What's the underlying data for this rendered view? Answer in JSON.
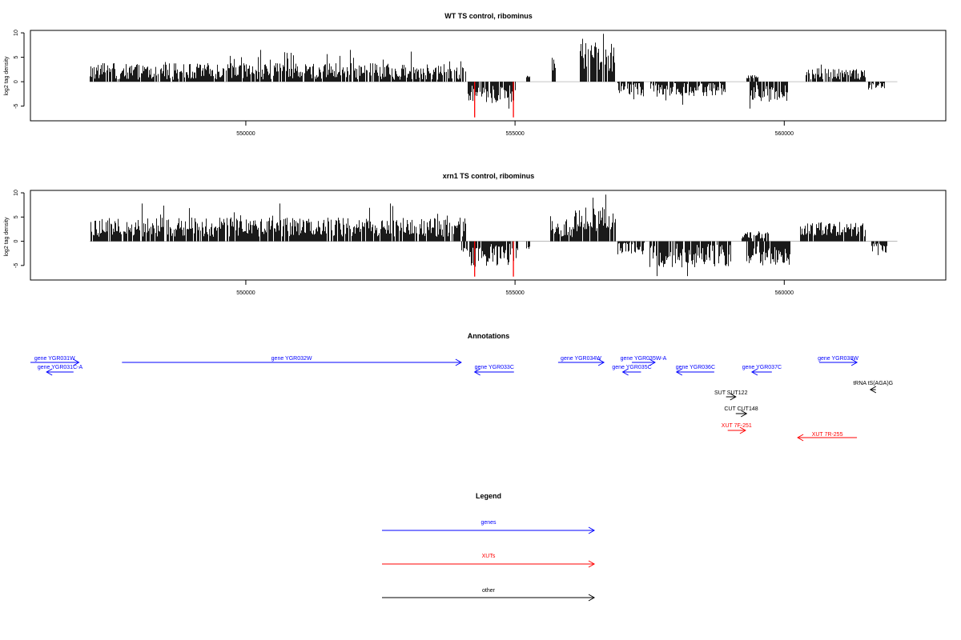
{
  "chart_data": [
    {
      "type": "bar",
      "title": "WT TS control, ribominus",
      "ylabel": "log2 tag density",
      "xlabel": "",
      "ylim": [
        -8,
        10.5
      ],
      "xlim": [
        546000,
        563000
      ],
      "yticks": [
        -5,
        0,
        5,
        10
      ],
      "xticks": [
        550000,
        555000,
        560000
      ],
      "xtick_labels": [
        "550000",
        "555000",
        "560000"
      ],
      "colors": {
        "bars": "#000000",
        "highlight": "#ff0000",
        "baseline": "#b0b0b0"
      },
      "segments": [
        {
          "start": 547100,
          "end": 554080,
          "sign": 1,
          "mean": 2.1,
          "amp": 1.7,
          "max": 6.5
        },
        {
          "start": 554120,
          "end": 555000,
          "sign": -1,
          "mean": 2.4,
          "amp": 1.8,
          "max": 5.5
        },
        {
          "start": 555200,
          "end": 555260,
          "sign": 1,
          "mean": 1.0,
          "amp": 0.2,
          "max": 1.2
        },
        {
          "start": 555680,
          "end": 555780,
          "sign": 1,
          "mean": 4.0,
          "amp": 2.0,
          "max": 6.2
        },
        {
          "start": 556200,
          "end": 556850,
          "sign": 1,
          "mean": 5.0,
          "amp": 3.0,
          "max": 9.8
        },
        {
          "start": 556900,
          "end": 557400,
          "sign": -1,
          "mean": 1.5,
          "amp": 1.6,
          "max": 3.6
        },
        {
          "start": 557500,
          "end": 558900,
          "sign": -1,
          "mean": 1.5,
          "amp": 1.5,
          "max": 4.7
        },
        {
          "start": 559300,
          "end": 559500,
          "sign": 1,
          "mean": 1.0,
          "amp": 0.4,
          "max": 1.4
        },
        {
          "start": 559350,
          "end": 560050,
          "sign": -1,
          "mean": 2.5,
          "amp": 2.0,
          "max": 5.5
        },
        {
          "start": 560400,
          "end": 561500,
          "sign": 1,
          "mean": 1.6,
          "amp": 1.2,
          "max": 3.5
        },
        {
          "start": 561550,
          "end": 561850,
          "sign": -1,
          "mean": 0.8,
          "amp": 0.8,
          "max": 2.0
        }
      ],
      "red_bars": [
        {
          "x": 554250,
          "y": -7.3
        },
        {
          "x": 554970,
          "y": -7.3
        }
      ]
    },
    {
      "type": "bar",
      "title": "xrn1 TS control, ribominus",
      "ylabel": "log2 tag density",
      "xlabel": "",
      "ylim": [
        -8,
        10.5
      ],
      "xlim": [
        546000,
        563000
      ],
      "yticks": [
        -5,
        0,
        5,
        10
      ],
      "xticks": [
        550000,
        555000,
        560000
      ],
      "xtick_labels": [
        "550000",
        "555000",
        "560000"
      ],
      "colors": {
        "bars": "#000000",
        "highlight": "#ff0000",
        "baseline": "#b0b0b0"
      },
      "segments": [
        {
          "start": 547100,
          "end": 554080,
          "sign": 1,
          "mean": 2.9,
          "amp": 2.0,
          "max": 7.8
        },
        {
          "start": 554000,
          "end": 555050,
          "sign": -1,
          "mean": 2.7,
          "amp": 2.3,
          "max": 6.5
        },
        {
          "start": 555200,
          "end": 555260,
          "sign": -1,
          "mean": 1.5,
          "amp": 0.6,
          "max": 2.5
        },
        {
          "start": 555650,
          "end": 555800,
          "sign": 1,
          "mean": 4.0,
          "amp": 2.5,
          "max": 6.8
        },
        {
          "start": 555800,
          "end": 556100,
          "sign": 1,
          "mean": 2.0,
          "amp": 1.5,
          "max": 4.5
        },
        {
          "start": 556100,
          "end": 556850,
          "sign": 1,
          "mean": 5.0,
          "amp": 3.0,
          "max": 9.8
        },
        {
          "start": 556900,
          "end": 557400,
          "sign": -1,
          "mean": 1.2,
          "amp": 1.5,
          "max": 3.0
        },
        {
          "start": 557500,
          "end": 559000,
          "sign": -1,
          "mean": 3.0,
          "amp": 2.5,
          "max": 7.2
        },
        {
          "start": 559200,
          "end": 559700,
          "sign": 1,
          "mean": 1.5,
          "amp": 1.0,
          "max": 3.2
        },
        {
          "start": 559300,
          "end": 560100,
          "sign": -1,
          "mean": 3.0,
          "amp": 2.0,
          "max": 5.5
        },
        {
          "start": 560300,
          "end": 561500,
          "sign": 1,
          "mean": 2.5,
          "amp": 1.5,
          "max": 4.5
        },
        {
          "start": 561600,
          "end": 561900,
          "sign": -1,
          "mean": 1.2,
          "amp": 1.2,
          "max": 3.0
        }
      ],
      "red_bars": [
        {
          "x": 554250,
          "y": -7.3
        },
        {
          "x": 554970,
          "y": -7.3
        }
      ]
    }
  ],
  "annotations": {
    "title": "Annotations",
    "items": [
      {
        "label": "gene YGR031W",
        "start": 546000,
        "end": 546900,
        "dir": "right",
        "color": "#0000ff",
        "row": 0
      },
      {
        "label": "gene YGR031C-A",
        "start": 546300,
        "end": 546800,
        "dir": "left",
        "color": "#0000ff",
        "row": 1
      },
      {
        "label": "gene YGR032W",
        "start": 547700,
        "end": 554000,
        "dir": "right",
        "color": "#0000ff",
        "row": 0
      },
      {
        "label": "gene YGR033C",
        "start": 554250,
        "end": 554980,
        "dir": "left",
        "color": "#0000ff",
        "row": 1
      },
      {
        "label": "gene YGR034W",
        "start": 555800,
        "end": 556650,
        "dir": "right",
        "color": "#0000ff",
        "row": 0
      },
      {
        "label": "gene YGR035W-A",
        "start": 557170,
        "end": 557600,
        "dir": "right",
        "color": "#0000ff",
        "row": 0
      },
      {
        "label": "gene YGR035C",
        "start": 557000,
        "end": 557340,
        "dir": "left",
        "color": "#0000ff",
        "row": 1
      },
      {
        "label": "gene YGR036C",
        "start": 558000,
        "end": 558700,
        "dir": "left",
        "color": "#0000ff",
        "row": 1
      },
      {
        "label": "gene YGR037C",
        "start": 559400,
        "end": 559770,
        "dir": "left",
        "color": "#0000ff",
        "row": 1
      },
      {
        "label": "gene YGR038W",
        "start": 560650,
        "end": 561350,
        "dir": "right",
        "color": "#0000ff",
        "row": 0
      },
      {
        "label": "tRNA tS(AGA)G",
        "start": 561600,
        "end": 561700,
        "dir": "left",
        "color": "#000000",
        "row": 2
      },
      {
        "label": "SUT SUT122",
        "start": 558920,
        "end": 559100,
        "dir": "right",
        "color": "#000000",
        "row": 3
      },
      {
        "label": "CUT CUT148",
        "start": 559100,
        "end": 559300,
        "dir": "right",
        "color": "#000000",
        "row": 4
      },
      {
        "label": "XUT 7F-251",
        "start": 558950,
        "end": 559280,
        "dir": "right",
        "color": "#ff0000",
        "row": 5
      },
      {
        "label": "XUT 7R-255",
        "start": 560250,
        "end": 561350,
        "dir": "left",
        "color": "#ff0000",
        "row": 6
      }
    ]
  },
  "legend": {
    "title": "Legend",
    "items": [
      {
        "label": "genes",
        "color": "#0000ff"
      },
      {
        "label": "XUTs",
        "color": "#ff0000"
      },
      {
        "label": "other",
        "color": "#000000"
      }
    ]
  }
}
